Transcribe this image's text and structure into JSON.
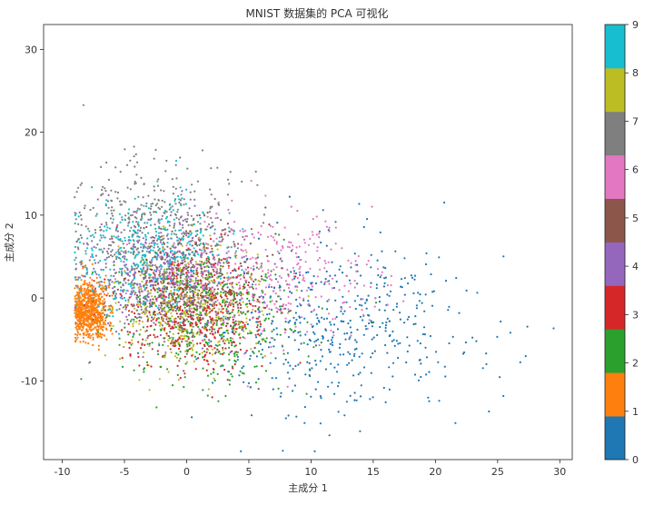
{
  "chart_data": {
    "type": "scatter",
    "title": "MNIST 数据集的 PCA 可视化",
    "xlabel": "主成分 1",
    "ylabel": "主成分 2",
    "xlim": [
      -11.5,
      31
    ],
    "ylim": [
      -19.5,
      33
    ],
    "xticks": [
      -10,
      -5,
      0,
      5,
      10,
      15,
      20,
      25,
      30
    ],
    "yticks": [
      -10,
      0,
      10,
      20,
      30
    ],
    "grid": false,
    "colorbar": {
      "label": "",
      "ticks": [
        0,
        1,
        2,
        3,
        4,
        5,
        6,
        7,
        8,
        9
      ],
      "colors": [
        "#1f77b4",
        "#ff7f0e",
        "#2ca02c",
        "#d62728",
        "#9467bd",
        "#8c564b",
        "#e377c2",
        "#7f7f7f",
        "#bcbd22",
        "#17becf"
      ]
    },
    "series": [
      {
        "digit": 0,
        "color": "#1f77b4",
        "center": [
          12.0,
          -3.0
        ],
        "spread": [
          5.5,
          5.5
        ],
        "count": 520
      },
      {
        "digit": 1,
        "color": "#ff7f0e",
        "center": [
          -7.8,
          -1.5
        ],
        "spread": [
          0.8,
          1.8
        ],
        "count": 700
      },
      {
        "digit": 2,
        "color": "#2ca02c",
        "center": [
          1.5,
          -2.5
        ],
        "spread": [
          3.5,
          4.0
        ],
        "count": 440
      },
      {
        "digit": 3,
        "color": "#d62728",
        "center": [
          0.5,
          -1.5
        ],
        "spread": [
          3.0,
          3.5
        ],
        "count": 440
      },
      {
        "digit": 4,
        "color": "#9467bd",
        "center": [
          -2.0,
          2.5
        ],
        "spread": [
          2.8,
          3.2
        ],
        "count": 420
      },
      {
        "digit": 5,
        "color": "#8c564b",
        "center": [
          0.5,
          1.0
        ],
        "spread": [
          3.2,
          3.5
        ],
        "count": 400
      },
      {
        "digit": 6,
        "color": "#e377c2",
        "center": [
          6.0,
          2.5
        ],
        "spread": [
          4.5,
          4.0
        ],
        "count": 420
      },
      {
        "digit": 7,
        "color": "#7f7f7f",
        "center": [
          -3.0,
          8.0
        ],
        "spread": [
          3.5,
          4.5
        ],
        "count": 460
      },
      {
        "digit": 8,
        "color": "#bcbd22",
        "center": [
          0.0,
          -1.0
        ],
        "spread": [
          3.0,
          3.5
        ],
        "count": 420
      },
      {
        "digit": 9,
        "color": "#17becf",
        "center": [
          -3.0,
          5.0
        ],
        "spread": [
          3.0,
          3.5
        ],
        "count": 450
      }
    ]
  }
}
